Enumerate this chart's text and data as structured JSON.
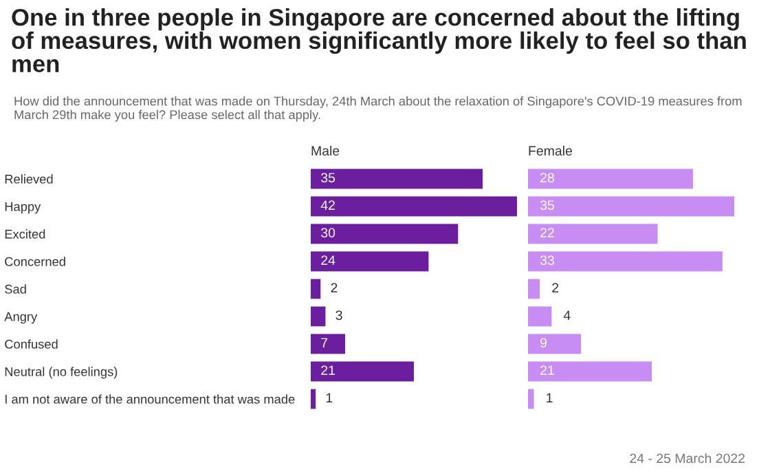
{
  "chart_data": [
    {
      "type": "other",
      "title": "One in three people in Singapore are concerned about the lifting of measures, with women significantly more likely to feel so than men",
      "subtitle": "How did the announcement that was made on Thursday, 24th March about the relaxation of Singapore's COVID-19 measures from March 29th make you feel? Please select all that apply.",
      "annotations": [
        "24 - 25 March 2022"
      ]
    },
    {
      "type": "bar",
      "orientation": "horizontal",
      "title": "Male",
      "categories": [
        "Relieved",
        "Happy",
        "Excited",
        "Concerned",
        "Sad",
        "Angry",
        "Confused",
        "Neutral (no feelings)",
        "I am not aware of the announcement that was made"
      ],
      "values": [
        35,
        42,
        30,
        24,
        2,
        3,
        7,
        21,
        1
      ],
      "color": "#6b1f9e",
      "data_labels": true,
      "grid": false
    },
    {
      "type": "bar",
      "orientation": "horizontal",
      "title": "Female",
      "categories": [
        null,
        null,
        null,
        null,
        null,
        null,
        null,
        null,
        null
      ],
      "values": [
        28,
        35,
        22,
        33,
        2,
        4,
        9,
        21,
        1
      ],
      "color": "#c78df2",
      "data_labels": true,
      "grid": false
    }
  ]
}
